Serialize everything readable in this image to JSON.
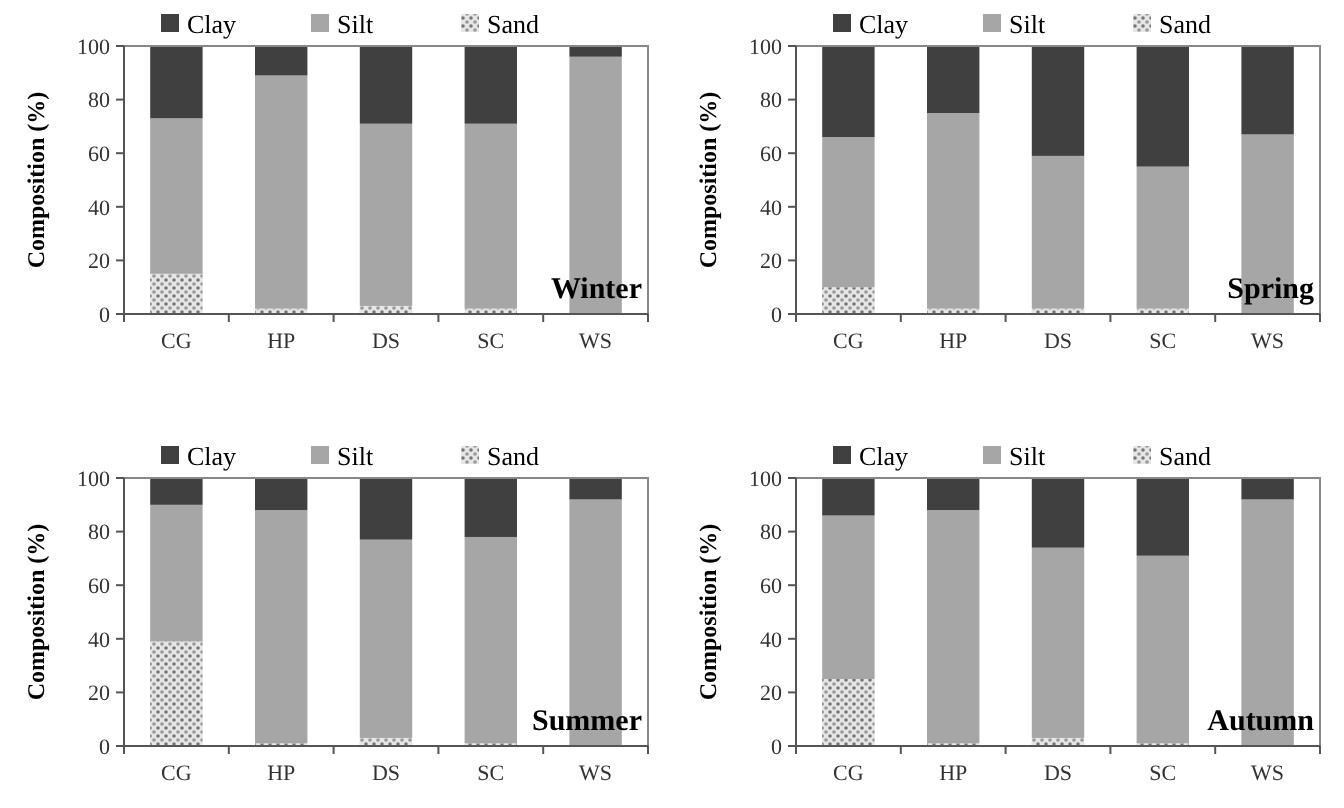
{
  "chart_data": [
    {
      "type": "bar",
      "stacked": true,
      "categories": [
        "CG",
        "HP",
        "DS",
        "SC",
        "WS"
      ],
      "ylabel": "Composition (%)",
      "ylim": [
        0,
        100
      ],
      "yticks": [
        0,
        20,
        40,
        60,
        80,
        100
      ],
      "legend": "top",
      "annotations": [
        "Winter"
      ],
      "series": [
        {
          "name": "Sand",
          "color": "#e6e6e6",
          "values": [
            15,
            2,
            3,
            2,
            0
          ]
        },
        {
          "name": "Silt",
          "color": "#a6a6a6",
          "values": [
            58,
            87,
            68,
            69,
            96
          ]
        },
        {
          "name": "Clay",
          "color": "#404040",
          "values": [
            27,
            11,
            29,
            29,
            4
          ]
        }
      ]
    },
    {
      "type": "bar",
      "stacked": true,
      "categories": [
        "CG",
        "HP",
        "DS",
        "SC",
        "WS"
      ],
      "ylabel": "Composition (%)",
      "ylim": [
        0,
        100
      ],
      "yticks": [
        0,
        20,
        40,
        60,
        80,
        100
      ],
      "legend": "top",
      "annotations": [
        "Spring"
      ],
      "series": [
        {
          "name": "Sand",
          "color": "#e6e6e6",
          "values": [
            10,
            2,
            2,
            2,
            0
          ]
        },
        {
          "name": "Silt",
          "color": "#a6a6a6",
          "values": [
            56,
            73,
            57,
            53,
            67
          ]
        },
        {
          "name": "Clay",
          "color": "#404040",
          "values": [
            34,
            25,
            41,
            45,
            33
          ]
        }
      ]
    },
    {
      "type": "bar",
      "stacked": true,
      "categories": [
        "CG",
        "HP",
        "DS",
        "SC",
        "WS"
      ],
      "ylabel": "Composition (%)",
      "ylim": [
        0,
        100
      ],
      "yticks": [
        0,
        20,
        40,
        60,
        80,
        100
      ],
      "legend": "top",
      "annotations": [
        "Summer"
      ],
      "series": [
        {
          "name": "Sand",
          "color": "#e6e6e6",
          "values": [
            39,
            1,
            3,
            1,
            0
          ]
        },
        {
          "name": "Silt",
          "color": "#a6a6a6",
          "values": [
            51,
            87,
            74,
            77,
            92
          ]
        },
        {
          "name": "Clay",
          "color": "#404040",
          "values": [
            10,
            12,
            23,
            22,
            8
          ]
        }
      ]
    },
    {
      "type": "bar",
      "stacked": true,
      "categories": [
        "CG",
        "HP",
        "DS",
        "SC",
        "WS"
      ],
      "ylabel": "Composition (%)",
      "ylim": [
        0,
        100
      ],
      "yticks": [
        0,
        20,
        40,
        60,
        80,
        100
      ],
      "legend": "top",
      "annotations": [
        "Autumn"
      ],
      "series": [
        {
          "name": "Sand",
          "color": "#e6e6e6",
          "values": [
            25,
            1,
            3,
            1,
            0
          ]
        },
        {
          "name": "Silt",
          "color": "#a6a6a6",
          "values": [
            61,
            87,
            71,
            70,
            92
          ]
        },
        {
          "name": "Clay",
          "color": "#404040",
          "values": [
            14,
            12,
            26,
            29,
            8
          ]
        }
      ]
    }
  ]
}
